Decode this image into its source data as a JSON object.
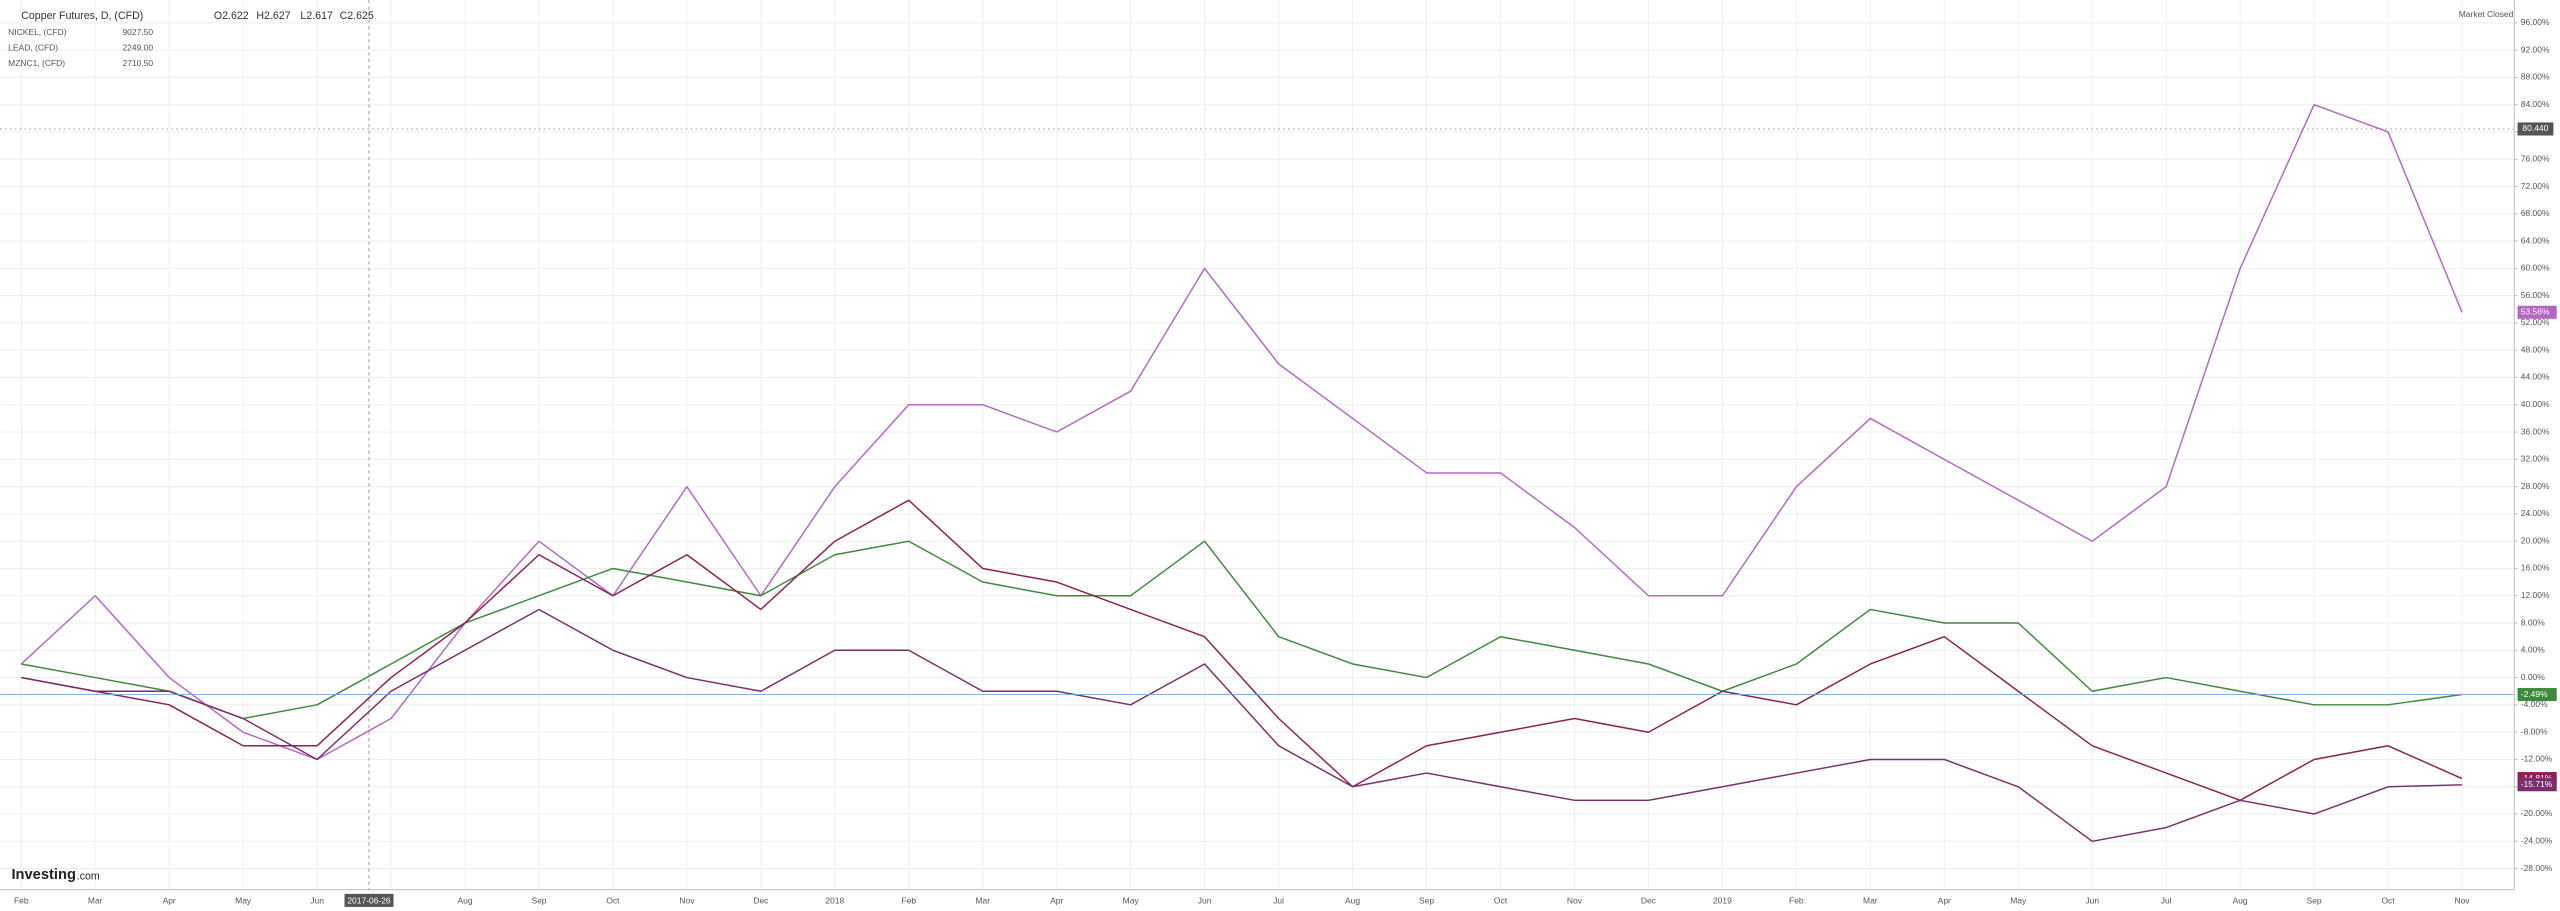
{
  "chart_data": {
    "type": "line",
    "header": {
      "title": "Copper Futures, D, (CFD)",
      "open": "O2.622",
      "high": "H2.627",
      "low": "L2.617",
      "close": "C2.625",
      "status": "Market Closed"
    },
    "legend_values": [
      "9027.50",
      "2249.00",
      "2710.50"
    ],
    "crosshair_x_label": "2017-06-26",
    "crosshair_y_label": "80.440",
    "logo": {
      "brand": "Investing",
      "suffix": ".com"
    },
    "categories": [
      "Feb",
      "Mar",
      "Apr",
      "May",
      "Jun",
      null,
      "Aug",
      "Sep",
      "Oct",
      "Nov",
      "Dec",
      "2018",
      "Feb",
      "Mar",
      "Apr",
      "May",
      "Jun",
      "Jul",
      "Aug",
      "Sep",
      "Oct",
      "Nov",
      "Dec",
      "2019",
      "Feb",
      "Mar",
      "Apr",
      "May",
      "Jun",
      "Jul",
      "Aug",
      "Sep",
      "Oct",
      "Nov"
    ],
    "series": [
      {
        "name": "NICKEL, (CFD)",
        "color": "#b566c4",
        "values": [
          2,
          12,
          0,
          -8,
          -12,
          -6,
          8,
          20,
          12,
          28,
          12,
          28,
          40,
          40,
          36,
          42,
          60,
          46,
          38,
          30,
          30,
          22,
          12,
          12,
          28,
          38,
          32,
          26,
          20,
          28,
          60,
          84,
          80,
          53.56
        ],
        "value_labels": [
          null,
          null,
          null,
          null,
          null,
          null,
          null,
          null,
          null,
          null,
          null,
          null,
          null,
          null,
          null,
          null,
          null,
          null,
          null,
          null,
          null,
          null,
          null,
          null,
          null,
          null,
          null,
          null,
          null,
          null,
          null,
          null,
          null,
          "53.56%"
        ]
      },
      {
        "name": "Copper Futures",
        "color": "#3c8a3c",
        "values": [
          2,
          0,
          -2,
          -6,
          -4,
          2,
          8,
          12,
          16,
          14,
          12,
          18,
          20,
          14,
          12,
          12,
          20,
          6,
          2,
          0,
          6,
          4,
          2,
          -2,
          2,
          10,
          8,
          8,
          -2,
          0,
          -2,
          -4,
          -4,
          -2.49
        ],
        "value_labels": [
          null,
          null,
          null,
          null,
          null,
          null,
          null,
          null,
          null,
          null,
          null,
          null,
          null,
          null,
          null,
          null,
          null,
          null,
          null,
          null,
          null,
          null,
          null,
          null,
          null,
          null,
          null,
          null,
          null,
          null,
          null,
          null,
          null,
          "-2.49%"
        ]
      },
      {
        "name": "LEAD, (CFD)",
        "color": "#8e1f52",
        "values": [
          0,
          -2,
          -4,
          -10,
          -10,
          0,
          8,
          18,
          12,
          18,
          10,
          20,
          26,
          16,
          14,
          10,
          6,
          -6,
          -16,
          -10,
          -8,
          -6,
          -8,
          -2,
          -4,
          2,
          6,
          -2,
          -10,
          -14,
          -18,
          -12,
          -10,
          -14.81
        ],
        "value_labels": [
          null,
          null,
          null,
          null,
          null,
          null,
          null,
          null,
          null,
          null,
          null,
          null,
          null,
          null,
          null,
          null,
          null,
          null,
          null,
          null,
          null,
          null,
          null,
          null,
          null,
          null,
          null,
          null,
          null,
          null,
          null,
          null,
          null,
          "-14.81%"
        ]
      },
      {
        "name": "MZNC1, (CFD)",
        "color": "#7b2c6c",
        "values": [
          0,
          -2,
          -2,
          -6,
          -12,
          -2,
          4,
          10,
          4,
          0,
          -2,
          4,
          4,
          -2,
          -2,
          -4,
          2,
          -10,
          -16,
          -14,
          -16,
          -18,
          -18,
          -16,
          -14,
          -12,
          -12,
          -16,
          -24,
          -22,
          -18,
          -20,
          -16,
          -15.71
        ],
        "value_labels": [
          null,
          null,
          null,
          null,
          null,
          null,
          null,
          null,
          null,
          null,
          null,
          null,
          null,
          null,
          null,
          null,
          null,
          null,
          null,
          null,
          null,
          null,
          null,
          null,
          null,
          null,
          null,
          null,
          null,
          null,
          null,
          null,
          null,
          "-15.71%"
        ]
      }
    ],
    "ylim": [
      -28,
      96
    ],
    "yticks": [
      {
        "value": 96,
        "label": "96.00%"
      },
      {
        "value": 92,
        "label": "92.00%"
      },
      {
        "value": 88,
        "label": "88.00%"
      },
      {
        "value": 84,
        "label": "84.00%"
      },
      {
        "value": 80,
        "label": "80.00%"
      },
      {
        "value": 76,
        "label": "76.00%"
      },
      {
        "value": 72,
        "label": "72.00%"
      },
      {
        "value": 68,
        "label": "68.00%"
      },
      {
        "value": 64,
        "label": "64.00%"
      },
      {
        "value": 60,
        "label": "60.00%"
      },
      {
        "value": 56,
        "label": "56.00%"
      },
      {
        "value": 52,
        "label": "52.00%"
      },
      {
        "value": 48,
        "label": "48.00%"
      },
      {
        "value": 44,
        "label": "44.00%"
      },
      {
        "value": 40,
        "label": "40.00%"
      },
      {
        "value": 36,
        "label": "36.00%"
      },
      {
        "value": 32,
        "label": "32.00%"
      },
      {
        "value": 28,
        "label": "28.00%"
      },
      {
        "value": 24,
        "label": "24.00%"
      },
      {
        "value": 20,
        "label": "20.00%"
      },
      {
        "value": 16,
        "label": "16.00%"
      },
      {
        "value": 12,
        "label": "12.00%"
      },
      {
        "value": 8,
        "label": "8.00%"
      },
      {
        "value": 4,
        "label": "4.00%"
      },
      {
        "value": 0,
        "label": "0.00%"
      },
      {
        "value": -4,
        "label": "-4.00%"
      },
      {
        "value": -8,
        "label": "-8.00%"
      },
      {
        "value": -12,
        "label": "-12.00%"
      },
      {
        "value": -16,
        "label": "-16.00%"
      },
      {
        "value": -20,
        "label": "-20.00%"
      },
      {
        "value": -24,
        "label": "-24.00%"
      },
      {
        "value": -28,
        "label": "-28.00%"
      }
    ],
    "grid": true
  }
}
